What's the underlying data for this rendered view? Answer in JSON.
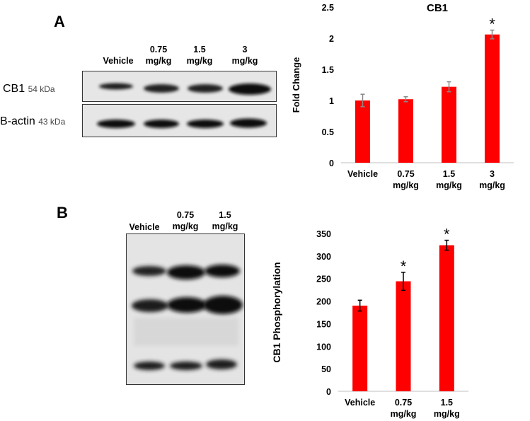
{
  "panel_a": {
    "letter": "A",
    "blot_lanes": [
      {
        "line1": "Vehicle",
        "line2": ""
      },
      {
        "line1": "0.75",
        "line2": "mg/kg"
      },
      {
        "line1": "1.5",
        "line2": "mg/kg"
      },
      {
        "line1": "3",
        "line2": "mg/kg"
      }
    ],
    "rows": [
      {
        "name": "CB1",
        "kda": "54 kDa"
      },
      {
        "name": "B-actin",
        "kda": "43 kDa"
      }
    ]
  },
  "panel_b": {
    "letter": "B",
    "blot_lanes": [
      {
        "line1": "Vehicle",
        "line2": ""
      },
      {
        "line1": "0.75",
        "line2": "mg/kg"
      },
      {
        "line1": "1.5",
        "line2": "mg/kg"
      }
    ]
  },
  "chart_data": [
    {
      "type": "bar",
      "title": "CB1",
      "ylabel": "Fold Change",
      "xlabel": "",
      "categories": [
        [
          "Vehicle"
        ],
        [
          "0.75",
          "mg/kg"
        ],
        [
          "1.5",
          "mg/kg"
        ],
        [
          "3",
          "mg/kg"
        ]
      ],
      "values": [
        1.0,
        1.02,
        1.22,
        2.06
      ],
      "errors": [
        0.1,
        0.04,
        0.08,
        0.07
      ],
      "significance": [
        "",
        "",
        "",
        "*"
      ],
      "ylim": [
        0,
        2.5
      ],
      "yticks": [
        "0",
        "0.5",
        "1",
        "1.5",
        "2",
        "2.5"
      ],
      "ytick_values": [
        0,
        0.5,
        1,
        1.5,
        2,
        2.5
      ],
      "color": "#ff0000",
      "grid": false
    },
    {
      "type": "bar",
      "title": "",
      "ylabel": "CB1 Phosphorylation",
      "xlabel": "",
      "categories": [
        [
          "Vehicle"
        ],
        [
          "0.75",
          "mg/kg"
        ],
        [
          "1.5",
          "mg/kg"
        ]
      ],
      "values": [
        190,
        244,
        324
      ],
      "errors": [
        12,
        20,
        11
      ],
      "significance": [
        "",
        "*",
        "*"
      ],
      "ylim": [
        0,
        350
      ],
      "yticks": [
        "0",
        "50",
        "100",
        "150",
        "200",
        "250",
        "300",
        "350"
      ],
      "ytick_values": [
        0,
        50,
        100,
        150,
        200,
        250,
        300,
        350
      ],
      "color": "#ff0000",
      "grid": false
    }
  ]
}
